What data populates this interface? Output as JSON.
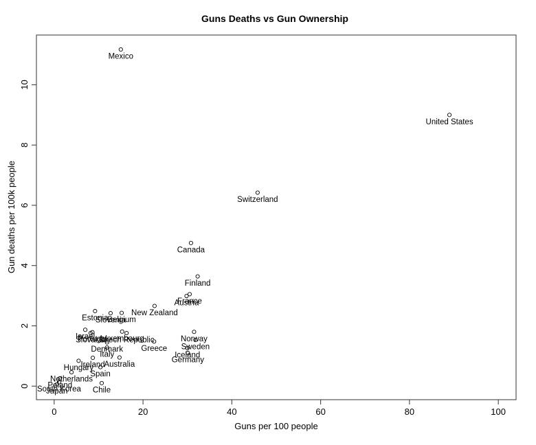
{
  "window": {
    "background": "#ffffff"
  },
  "chart_data": {
    "type": "scatter",
    "title": "Guns Deaths vs Gun Ownership",
    "xlabel": "Guns per 100 people",
    "ylabel": "Gun deaths per 100k people",
    "xlim": [
      -4,
      104
    ],
    "ylim": [
      -0.45,
      11.65
    ],
    "xticks": [
      0,
      20,
      40,
      60,
      80,
      100
    ],
    "yticks": [
      0,
      2,
      4,
      6,
      8,
      10
    ],
    "grid": false,
    "legend": "none",
    "marker": "open-circle",
    "colors": {
      "point_stroke": "#000000",
      "text": "#000000",
      "box": "#333333",
      "background": "#ffffff"
    },
    "points": [
      {
        "label": "Mexico",
        "x": 15.0,
        "y": 11.17
      },
      {
        "label": "United States",
        "x": 89.0,
        "y": 9.0
      },
      {
        "label": "Switzerland",
        "x": 45.8,
        "y": 6.42
      },
      {
        "label": "Canada",
        "x": 30.8,
        "y": 4.75
      },
      {
        "label": "Finland",
        "x": 32.3,
        "y": 3.64
      },
      {
        "label": "France",
        "x": 30.5,
        "y": 3.05
      },
      {
        "label": "Austria",
        "x": 29.8,
        "y": 2.99
      },
      {
        "label": "New Zealand",
        "x": 22.6,
        "y": 2.66
      },
      {
        "label": "Estonia",
        "x": 9.2,
        "y": 2.49
      },
      {
        "label": "Slovenia",
        "x": 12.7,
        "y": 2.42
      },
      {
        "label": "Belgium",
        "x": 15.2,
        "y": 2.43
      },
      {
        "label": "Israel",
        "x": 7.0,
        "y": 1.87
      },
      {
        "label": "Slovakia",
        "x": 8.2,
        "y": 1.76
      },
      {
        "label": "Portugal",
        "x": 8.6,
        "y": 1.79
      },
      {
        "label": "Luxembourg",
        "x": 15.3,
        "y": 1.81
      },
      {
        "label": "Czech Republic",
        "x": 16.3,
        "y": 1.76
      },
      {
        "label": "Norway",
        "x": 31.5,
        "y": 1.8
      },
      {
        "label": "Sweden",
        "x": 31.8,
        "y": 1.53
      },
      {
        "label": "Denmark",
        "x": 11.9,
        "y": 1.45
      },
      {
        "label": "Greece",
        "x": 22.5,
        "y": 1.48
      },
      {
        "label": "Iceland",
        "x": 30.0,
        "y": 1.26
      },
      {
        "label": "Germany",
        "x": 30.1,
        "y": 1.1
      },
      {
        "label": "Italy",
        "x": 11.9,
        "y": 1.28
      },
      {
        "label": "Ireland",
        "x": 8.7,
        "y": 0.94
      },
      {
        "label": "Australia",
        "x": 14.7,
        "y": 0.95
      },
      {
        "label": "Hungary",
        "x": 5.5,
        "y": 0.84
      },
      {
        "label": "Spain",
        "x": 10.4,
        "y": 0.63
      },
      {
        "label": "Netherlands",
        "x": 3.9,
        "y": 0.46
      },
      {
        "label": "Poland",
        "x": 1.3,
        "y": 0.26
      },
      {
        "label": "South Korea",
        "x": 1.1,
        "y": 0.13
      },
      {
        "label": "Japan",
        "x": 0.6,
        "y": 0.06
      },
      {
        "label": "Chile",
        "x": 10.7,
        "y": 0.1
      }
    ]
  }
}
